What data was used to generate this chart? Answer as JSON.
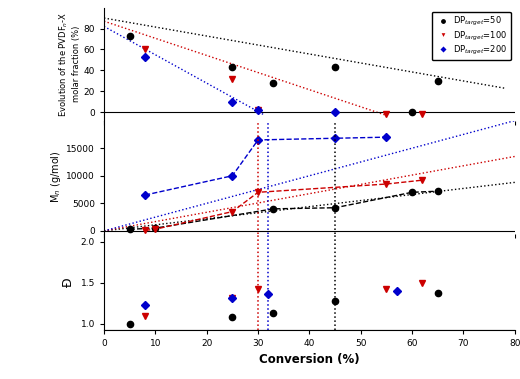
{
  "top_panel": {
    "ylabel": "Evolution of the PVDF$_n$-X\nmolar fraction (%)",
    "ylim": [
      -8,
      100
    ],
    "yticks": [
      0,
      20,
      40,
      60,
      80
    ],
    "dp50": {
      "x": [
        5,
        25,
        33,
        45,
        60,
        65
      ],
      "y": [
        73,
        43,
        28,
        43,
        0,
        30
      ]
    },
    "dp100": {
      "x": [
        8,
        25,
        30,
        55,
        62
      ],
      "y": [
        60,
        32,
        2,
        -2,
        -2
      ]
    },
    "dp200": {
      "x": [
        8,
        25,
        30,
        45
      ],
      "y": [
        53,
        10,
        2,
        0
      ]
    },
    "trend_dp50": {
      "x": [
        0,
        80
      ],
      "y": [
        90,
        20
      ]
    },
    "trend_dp100": {
      "x": [
        0,
        55
      ],
      "y": [
        88,
        -2
      ]
    },
    "trend_dp200": {
      "x": [
        0,
        32
      ],
      "y": [
        82,
        -2
      ]
    }
  },
  "middle_panel": {
    "ylabel": "M$_n$ (g/mol)",
    "ylim": [
      -500,
      20000
    ],
    "yticks": [
      0,
      5000,
      10000,
      15000
    ],
    "dp50": {
      "x": [
        5,
        10,
        33,
        45,
        60,
        65
      ],
      "y": [
        300,
        500,
        4000,
        4200,
        7000,
        7200
      ]
    },
    "dp100": {
      "x": [
        8,
        10,
        25,
        30,
        55,
        62
      ],
      "y": [
        100,
        300,
        3500,
        7000,
        8500,
        9200
      ]
    },
    "dp200": {
      "x": [
        8,
        25,
        30,
        45,
        55
      ],
      "y": [
        6500,
        10000,
        16500,
        16800,
        17000
      ]
    },
    "theory_dp50": {
      "x": [
        0,
        80
      ],
      "y": [
        0,
        8800
      ]
    },
    "theory_dp100": {
      "x": [
        0,
        80
      ],
      "y": [
        0,
        13500
      ]
    },
    "theory_dp200": {
      "x": [
        0,
        80
      ],
      "y": [
        0,
        20000
      ]
    },
    "vline_red": 30,
    "vline_blue": 32,
    "vline_black": 45
  },
  "bottom_panel": {
    "ylabel": "Ð",
    "ylim": [
      0.93,
      2.1
    ],
    "yticks": [
      1.0,
      1.5,
      2.0
    ],
    "xlabel": "Conversion (%)",
    "xlim": [
      0,
      80
    ],
    "xticks": [
      0,
      10,
      20,
      30,
      40,
      50,
      60,
      70,
      80
    ],
    "dp50": {
      "x": [
        5,
        25,
        33,
        45,
        65
      ],
      "y": [
        1.0,
        1.09,
        1.13,
        1.28,
        1.38
      ]
    },
    "dp100": {
      "x": [
        8,
        25,
        30,
        55,
        62
      ],
      "y": [
        1.1,
        1.32,
        1.42,
        1.43,
        1.5
      ]
    },
    "dp200": {
      "x": [
        8,
        25,
        32,
        57
      ],
      "y": [
        1.23,
        1.32,
        1.36,
        1.4
      ]
    },
    "vline_red": 30,
    "vline_blue": 32,
    "vline_black": 45
  },
  "colors": {
    "black": "#000000",
    "red": "#cc0000",
    "blue": "#0000cc"
  },
  "legend": {
    "dp50_label": "DP$_{target}$=50",
    "dp100_label": "DP$_{target}$=100",
    "dp200_label": "DP$_{target}$=200"
  }
}
